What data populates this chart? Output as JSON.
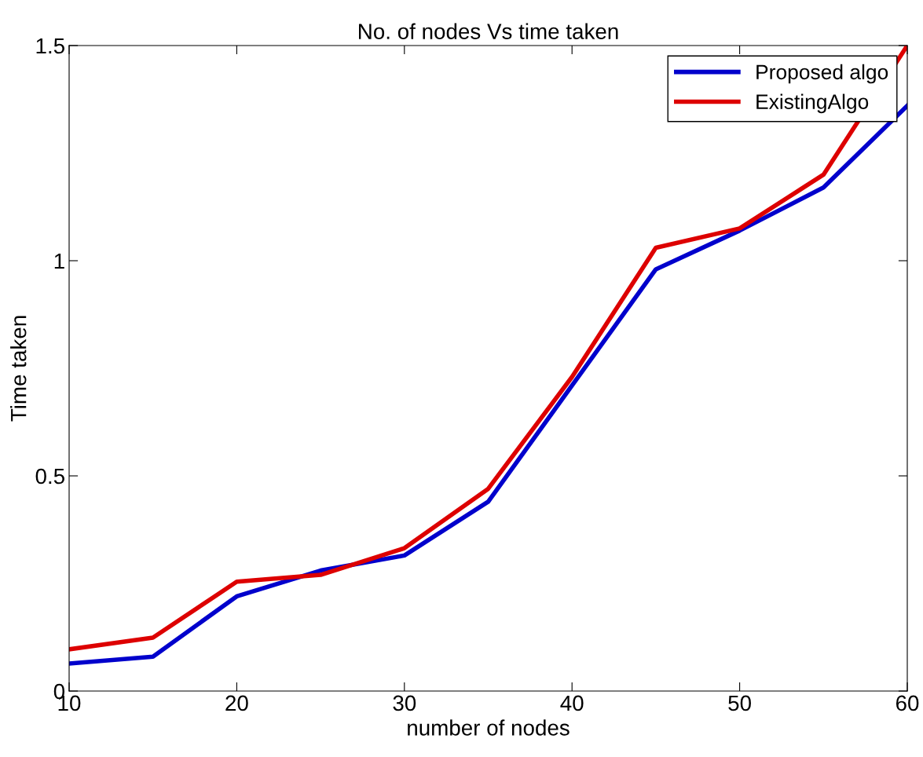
{
  "chart_data": {
    "type": "line",
    "title": "No. of nodes Vs time taken",
    "xlabel": "number of nodes",
    "ylabel": "Time taken",
    "x": [
      10,
      15,
      20,
      25,
      30,
      35,
      40,
      45,
      50,
      55,
      60
    ],
    "series": [
      {
        "name": "Proposed algo",
        "color": "#0000cc",
        "values": [
          0.064,
          0.08,
          0.22,
          0.28,
          0.315,
          0.44,
          0.71,
          0.98,
          1.07,
          1.17,
          1.36
        ]
      },
      {
        "name": "ExistingAlgo",
        "color": "#dd0000",
        "values": [
          0.097,
          0.124,
          0.254,
          0.27,
          0.332,
          0.47,
          0.73,
          1.03,
          1.075,
          1.2,
          1.5
        ]
      }
    ],
    "xlim": [
      10,
      60
    ],
    "xticks": [
      10,
      20,
      30,
      40,
      50,
      60
    ],
    "ylim": [
      0,
      1.5
    ],
    "yticks": [
      0,
      0.5,
      1,
      1.5
    ],
    "legend": "top right",
    "grid": false
  }
}
